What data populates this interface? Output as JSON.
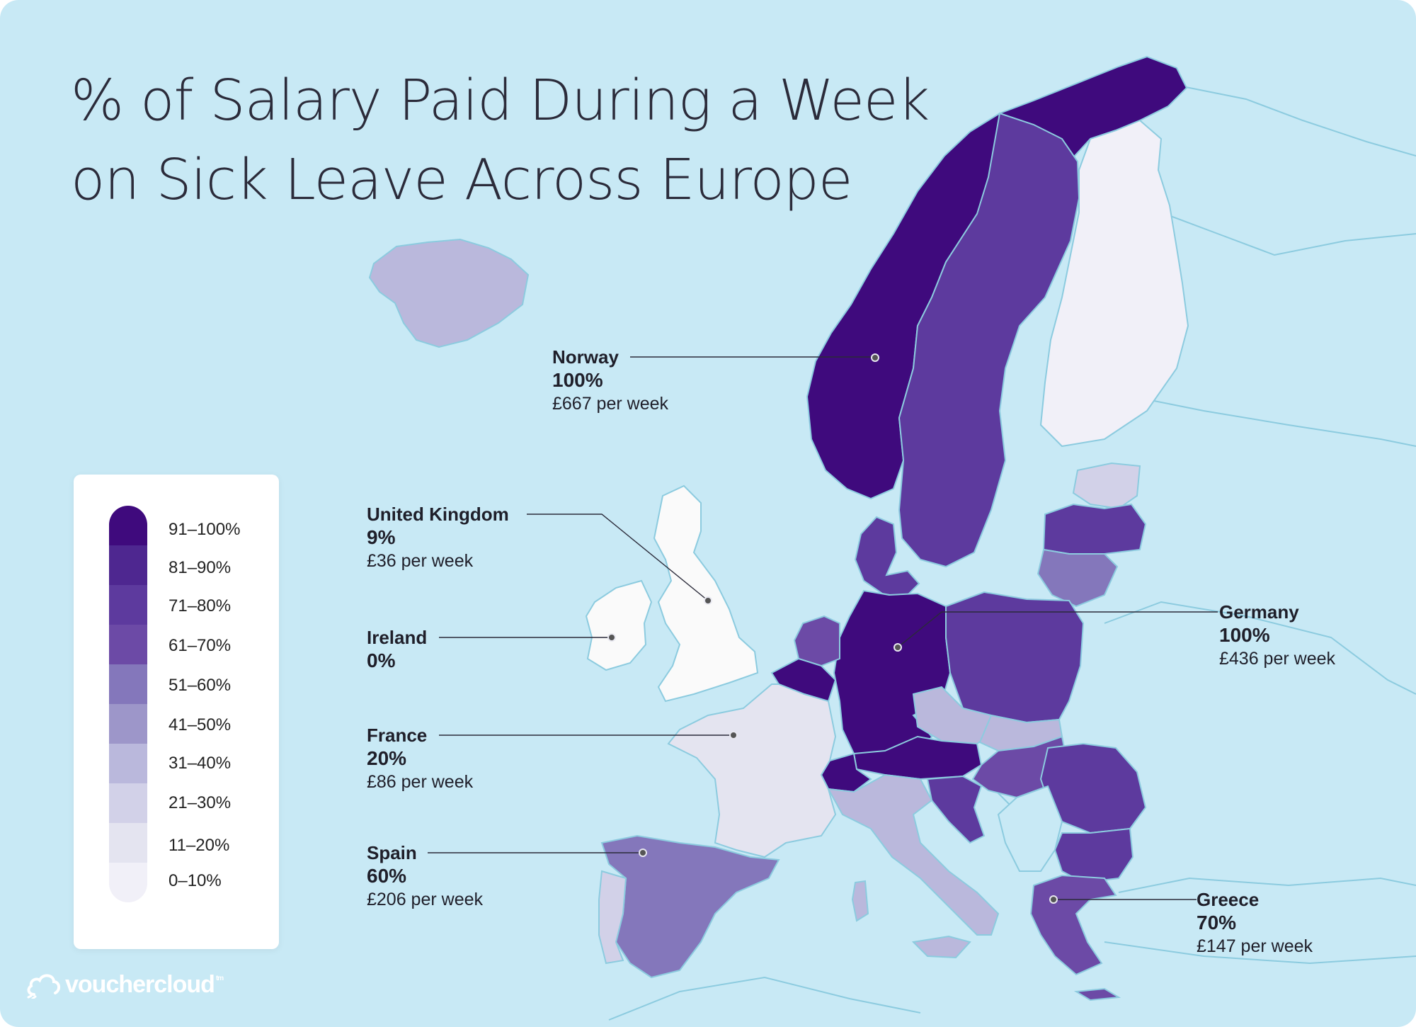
{
  "title": "% of Salary Paid During a Week on Sick Leave Across Europe",
  "legend": [
    {
      "label": "91–100%",
      "color": "#3f0a7d"
    },
    {
      "label": "81–90%",
      "color": "#4e2790"
    },
    {
      "label": "71–80%",
      "color": "#5d3a9e"
    },
    {
      "label": "61–70%",
      "color": "#6c4aa6"
    },
    {
      "label": "51–60%",
      "color": "#8477bb"
    },
    {
      "label": "41–50%",
      "color": "#9d96c9"
    },
    {
      "label": "31–40%",
      "color": "#bab8dc"
    },
    {
      "label": "21–30%",
      "color": "#d2d1e8"
    },
    {
      "label": "11–20%",
      "color": "#e4e4f0"
    },
    {
      "label": "0–10%",
      "color": "#f1f0f8"
    }
  ],
  "callouts": [
    {
      "country": "Norway",
      "percent": "100%",
      "pay": "£667 per week"
    },
    {
      "country": "United Kingdom",
      "percent": "9%",
      "pay": "£36 per week"
    },
    {
      "country": "Ireland",
      "percent": "0%",
      "pay": ""
    },
    {
      "country": "France",
      "percent": "20%",
      "pay": "£86 per week"
    },
    {
      "country": "Spain",
      "percent": "60%",
      "pay": "£206 per week"
    },
    {
      "country": "Germany",
      "percent": "100%",
      "pay": "£436 per week"
    },
    {
      "country": "Greece",
      "percent": "70%",
      "pay": "£147 per week"
    }
  ],
  "colors": {
    "sea": "#c8e9f5",
    "neighbor_land": "#c8e9f5",
    "border": "#8ccbdf",
    "no_data_land": "#fafafa"
  },
  "brand": {
    "name": "vouchercloud",
    "tm": "tm"
  }
}
